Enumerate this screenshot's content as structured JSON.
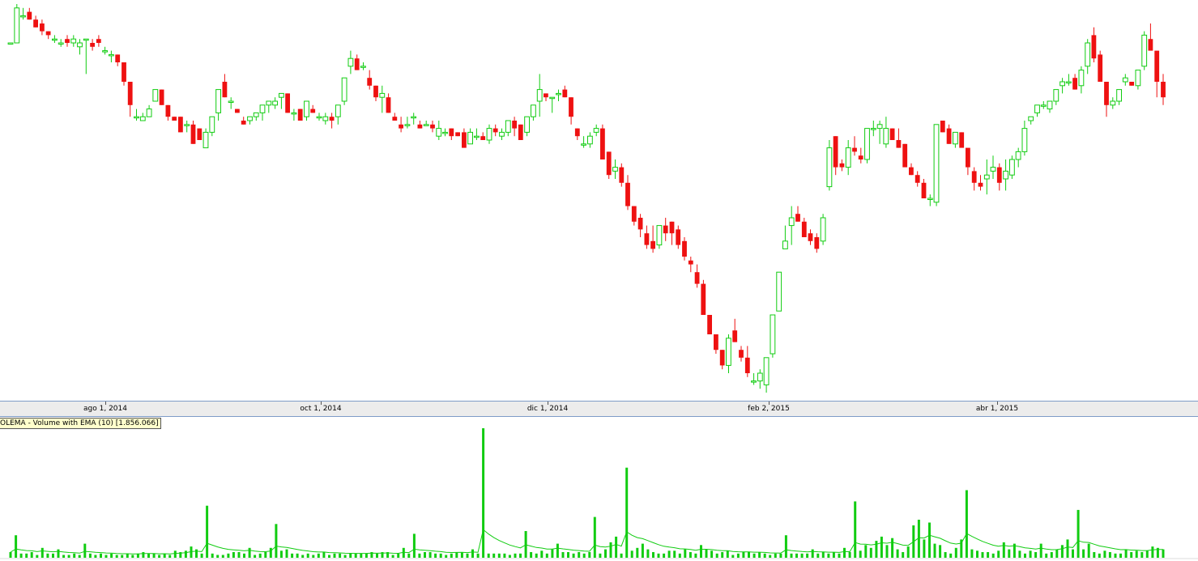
{
  "colors": {
    "up": "#11cc11",
    "down": "#ee1111",
    "volume": "#11cc11",
    "ema": "#11cc11",
    "axis_band": "#ececec",
    "legend_bg": "#ffffcc"
  },
  "volume_legend": "OLEMA - Volume with EMA (10) [1.856.066]",
  "x_ticks": [
    "ago 1, 2014",
    "oct 1, 2014",
    "dic 1, 2014",
    "feb 2, 2015",
    "abr 1, 2015"
  ],
  "chart_data": [
    {
      "type": "candlestick",
      "title": "",
      "x_ticks": [
        "ago 1, 2014",
        "oct 1, 2014",
        "dic 1, 2014",
        "feb 2, 2015",
        "abr 1, 2015"
      ],
      "y_scale_hidden": true,
      "y_range_relative": [
        0,
        100
      ],
      "candles_ohlc": [
        [
          90,
          90,
          90,
          90
        ],
        [
          90,
          100,
          90,
          99
        ],
        [
          97,
          99,
          96,
          97
        ],
        [
          98,
          99,
          96,
          96
        ],
        [
          96,
          97,
          94,
          94
        ],
        [
          95,
          96,
          92,
          93
        ],
        [
          93,
          93,
          91,
          92
        ],
        [
          91,
          92,
          90,
          91
        ],
        [
          90,
          91,
          89,
          90
        ],
        [
          91,
          92,
          89,
          90
        ],
        [
          90,
          92,
          89,
          91
        ],
        [
          89,
          91,
          87,
          90
        ],
        [
          91,
          91,
          82,
          91
        ],
        [
          90,
          91,
          88,
          89
        ],
        [
          91,
          92,
          89,
          90
        ],
        [
          88,
          89,
          87,
          88
        ],
        [
          87,
          88,
          85,
          87
        ],
        [
          87,
          87,
          84,
          85
        ],
        [
          85,
          85,
          79,
          80
        ],
        [
          80,
          80,
          71,
          74
        ],
        [
          71,
          73,
          70,
          71
        ],
        [
          70,
          72,
          70,
          71
        ],
        [
          71,
          74,
          71,
          73
        ],
        [
          75,
          78,
          75,
          78
        ],
        [
          78,
          78,
          74,
          74
        ],
        [
          74,
          74,
          70,
          71
        ],
        [
          71,
          71,
          70,
          70
        ],
        [
          71,
          71,
          67,
          67
        ],
        [
          69,
          70,
          67,
          69
        ],
        [
          69,
          70,
          64,
          64
        ],
        [
          68,
          68,
          65,
          65
        ],
        [
          63,
          68,
          63,
          67
        ],
        [
          67,
          71,
          66,
          71
        ],
        [
          72,
          78,
          70,
          78
        ],
        [
          80,
          82,
          76,
          76
        ],
        [
          75,
          76,
          73,
          75
        ],
        [
          73,
          73,
          72,
          72
        ],
        [
          70,
          71,
          69,
          69
        ],
        [
          70,
          71,
          69,
          71
        ],
        [
          71,
          72,
          70,
          72
        ],
        [
          72,
          74,
          70,
          74
        ],
        [
          74,
          75,
          72,
          75
        ],
        [
          74,
          76,
          73,
          75
        ],
        [
          76,
          77,
          73,
          77
        ],
        [
          77,
          77,
          72,
          72
        ],
        [
          72,
          73,
          70,
          72
        ],
        [
          73,
          73,
          70,
          70
        ],
        [
          71,
          75,
          70,
          75
        ],
        [
          73,
          74,
          72,
          72
        ],
        [
          71,
          72,
          70,
          71
        ],
        [
          70,
          72,
          69,
          71
        ],
        [
          71,
          72,
          68,
          70
        ],
        [
          71,
          74,
          69,
          74
        ],
        [
          75,
          81,
          74,
          81
        ],
        [
          84,
          88,
          82,
          86
        ],
        [
          86,
          87,
          83,
          83
        ],
        [
          84,
          85,
          83,
          84
        ],
        [
          81,
          83,
          78,
          79
        ],
        [
          79,
          79,
          75,
          76
        ],
        [
          76,
          79,
          72,
          77
        ],
        [
          76,
          77,
          72,
          72
        ],
        [
          71,
          72,
          70,
          70
        ],
        [
          69,
          71,
          67,
          68
        ],
        [
          69,
          71,
          68,
          69
        ],
        [
          71,
          72,
          69,
          71
        ],
        [
          69,
          70,
          68,
          68
        ],
        [
          69,
          70,
          69,
          69
        ],
        [
          69,
          70,
          67,
          68
        ],
        [
          66,
          70,
          65,
          68
        ],
        [
          67,
          68,
          66,
          67
        ],
        [
          68,
          68,
          65,
          66
        ],
        [
          67,
          67,
          66,
          66
        ],
        [
          67,
          68,
          63,
          63
        ],
        [
          64,
          68,
          64,
          67
        ],
        [
          66,
          68,
          65,
          66
        ],
        [
          66,
          67,
          65,
          65
        ],
        [
          65,
          69,
          64,
          68
        ],
        [
          68,
          69,
          66,
          67
        ],
        [
          66,
          68,
          65,
          67
        ],
        [
          67,
          70,
          66,
          70
        ],
        [
          70,
          71,
          66,
          68
        ],
        [
          69,
          69,
          65,
          65
        ],
        [
          67,
          71,
          66,
          71
        ],
        [
          71,
          74,
          70,
          74
        ],
        [
          75,
          82,
          71,
          78
        ],
        [
          77,
          77,
          75,
          76
        ],
        [
          76,
          76,
          72,
          76
        ],
        [
          77,
          78,
          75,
          77
        ],
        [
          78,
          79,
          76,
          76
        ],
        [
          76,
          76,
          69,
          71
        ],
        [
          68,
          68,
          65,
          66
        ],
        [
          64,
          66,
          63,
          64
        ],
        [
          64,
          67,
          63,
          66
        ],
        [
          67,
          69,
          66,
          68
        ],
        [
          68,
          69,
          62,
          60
        ],
        [
          62,
          62,
          55,
          56
        ],
        [
          57,
          60,
          55,
          58
        ],
        [
          58,
          59,
          53,
          54
        ],
        [
          54,
          56,
          47,
          48
        ],
        [
          48,
          48,
          43,
          44
        ],
        [
          45,
          46,
          40,
          42
        ],
        [
          41,
          43,
          37,
          38
        ],
        [
          39,
          43,
          36,
          37
        ],
        [
          38,
          43,
          37,
          43
        ],
        [
          43,
          45,
          39,
          41
        ],
        [
          44,
          44,
          38,
          41
        ],
        [
          42,
          43,
          37,
          38
        ],
        [
          39,
          40,
          34,
          35
        ],
        [
          34,
          35,
          31,
          33
        ],
        [
          31,
          33,
          27,
          28
        ],
        [
          28,
          29,
          21,
          20
        ],
        [
          20,
          20,
          17,
          15
        ],
        [
          15,
          15,
          10,
          11
        ],
        [
          11,
          11,
          6,
          7
        ],
        [
          7,
          15,
          5,
          14
        ],
        [
          16,
          19,
          13,
          13
        ],
        [
          11,
          12,
          8,
          9
        ],
        [
          9,
          12,
          4,
          5
        ],
        [
          3,
          5,
          2,
          3
        ],
        [
          3,
          6,
          1,
          5
        ],
        [
          2,
          8,
          0,
          9
        ],
        [
          10,
          20,
          9,
          20
        ],
        [
          21,
          31,
          21,
          31
        ],
        [
          37,
          43,
          37,
          39
        ],
        [
          43,
          48,
          38,
          45
        ],
        [
          46,
          48,
          44,
          44
        ],
        [
          44,
          45,
          40,
          40
        ],
        [
          41,
          42,
          38,
          39
        ],
        [
          40,
          41,
          36,
          37
        ],
        [
          39,
          46,
          38,
          45
        ],
        [
          53,
          65,
          52,
          63
        ],
        [
          66,
          66,
          56,
          58
        ],
        [
          59,
          60,
          57,
          58
        ],
        [
          58,
          65,
          56,
          63
        ],
        [
          63,
          66,
          61,
          62
        ],
        [
          61,
          63,
          59,
          60
        ],
        [
          60,
          67,
          59,
          68
        ],
        [
          68,
          70,
          66,
          68
        ],
        [
          68,
          70,
          64,
          69
        ],
        [
          64,
          71,
          63,
          68
        ],
        [
          68,
          68,
          65,
          65
        ],
        [
          65,
          68,
          63,
          63
        ],
        [
          64,
          64,
          59,
          58
        ],
        [
          58,
          59,
          56,
          56
        ],
        [
          56,
          57,
          53,
          54
        ],
        [
          54,
          55,
          50,
          50
        ],
        [
          50,
          51,
          48,
          50
        ],
        [
          49,
          69,
          48,
          69
        ],
        [
          70,
          70,
          67,
          67
        ],
        [
          68,
          69,
          64,
          64
        ],
        [
          64,
          67,
          63,
          67
        ],
        [
          67,
          67,
          64,
          63
        ],
        [
          63,
          62,
          56,
          58
        ],
        [
          57,
          58,
          52,
          54
        ],
        [
          54,
          56,
          52,
          53
        ],
        [
          55,
          60,
          51,
          56
        ],
        [
          57,
          61,
          55,
          58
        ],
        [
          58,
          59,
          52,
          54
        ],
        [
          55,
          60,
          52,
          57
        ],
        [
          56,
          61,
          55,
          60
        ],
        [
          60,
          63,
          58,
          62
        ],
        [
          62,
          70,
          61,
          68
        ],
        [
          70,
          71,
          69,
          71
        ],
        [
          72,
          74,
          71,
          74
        ],
        [
          74,
          75,
          73,
          74
        ],
        [
          73,
          75,
          72,
          75
        ],
        [
          75,
          78,
          74,
          78
        ],
        [
          79,
          81,
          77,
          80
        ],
        [
          80,
          82,
          79,
          80
        ],
        [
          81,
          82,
          78,
          78
        ],
        [
          79,
          84,
          77,
          83
        ],
        [
          84,
          91,
          82,
          90
        ],
        [
          92,
          94,
          85,
          86
        ],
        [
          87,
          88,
          81,
          80
        ],
        [
          80,
          80,
          71,
          74
        ],
        [
          74,
          76,
          73,
          75
        ],
        [
          75,
          78,
          74,
          78
        ],
        [
          80,
          82,
          79,
          81
        ],
        [
          80,
          80,
          79,
          79
        ],
        [
          79,
          83,
          78,
          83
        ],
        [
          84,
          93,
          83,
          92
        ],
        [
          91,
          95,
          89,
          88
        ],
        [
          88,
          83,
          76,
          80
        ],
        [
          80,
          82,
          74,
          76
        ]
      ],
      "volume": [
        4,
        16,
        3,
        3,
        4,
        2,
        7,
        3,
        3,
        6,
        2,
        2,
        3,
        2,
        10,
        3,
        2,
        3,
        2,
        3,
        2,
        2,
        3,
        2,
        3,
        4,
        3,
        3,
        2,
        3,
        2,
        5,
        4,
        5,
        8,
        6,
        3,
        37,
        3,
        2,
        2,
        3,
        4,
        4,
        3,
        7,
        2,
        3,
        4,
        7,
        24,
        5,
        6,
        3,
        3,
        2,
        3,
        2,
        3,
        4,
        2,
        3,
        3,
        2,
        3,
        3,
        3,
        3,
        4,
        3,
        4,
        4,
        2,
        3,
        7,
        3,
        17,
        3,
        4,
        4,
        3,
        3,
        2,
        3,
        4,
        4,
        3,
        6,
        3,
        92,
        3,
        3,
        3,
        3,
        2,
        3,
        3,
        19,
        4,
        3,
        5,
        3,
        6,
        10,
        4,
        4,
        3,
        4,
        3,
        4,
        29,
        3,
        6,
        11,
        15,
        3,
        64,
        5,
        7,
        10,
        6,
        4,
        3,
        3,
        5,
        5,
        3,
        6,
        4,
        3,
        9,
        6,
        5,
        3,
        4,
        5,
        2,
        3,
        4,
        4,
        3,
        4,
        3,
        2,
        3,
        3,
        16,
        3,
        3,
        3,
        3,
        6,
        3,
        4,
        3,
        4,
        3,
        7,
        4,
        40,
        5,
        9,
        7,
        12,
        15,
        9,
        14,
        6,
        4,
        8,
        23,
        27,
        13,
        25,
        10,
        9,
        4,
        3,
        7,
        13,
        48,
        6,
        5,
        4,
        4,
        3,
        5,
        11,
        6,
        10,
        5,
        3,
        5,
        4,
        10,
        3,
        4,
        6,
        9,
        13,
        6,
        34,
        6,
        10,
        4,
        3,
        5,
        4,
        3,
        3,
        6,
        4,
        5,
        4,
        5,
        8,
        7,
        6
      ],
      "volume_indicator": {
        "name": "OLEMA - Volume with EMA (10)",
        "last": "1.856.066"
      }
    }
  ]
}
